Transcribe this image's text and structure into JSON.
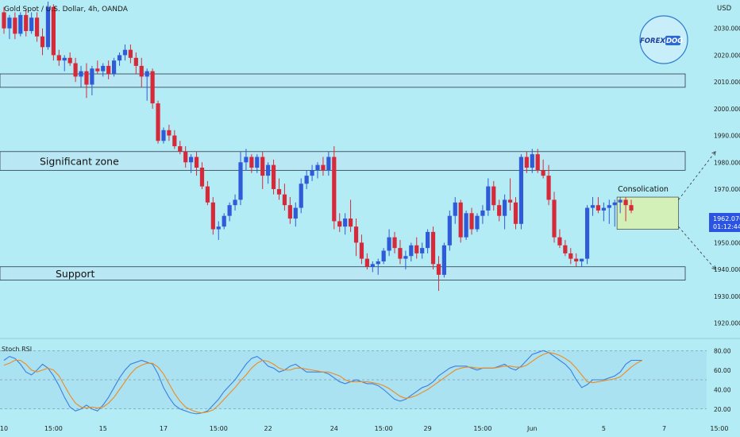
{
  "header": {
    "symbol_title": "Gold Spot / U.S. Dollar, 4h, OANDA"
  },
  "logo": {
    "text_a": "FOREX",
    "text_b": "DOG"
  },
  "colors": {
    "background": "#b3ecf5",
    "bull": "#2f5bd9",
    "bear": "#d62a3a",
    "k_line": "#3d7fe0",
    "d_line": "#f08b1e",
    "zone_fill": "#b9e7f3",
    "consolidation_fill": "#d4f0b9",
    "price_tag": "#2b55e0"
  },
  "chart_data": [
    {
      "type": "candlestick",
      "title": "Gold Spot / U.S. Dollar, 4h, OANDA",
      "price_axis_label": "USD",
      "ylim": [
        1916,
        2040
      ],
      "y_ticks": [
        1920,
        1930,
        1940,
        1950,
        1960,
        1970,
        1980,
        1990,
        2000,
        2010,
        2020,
        2030
      ],
      "y_tick_labels": [
        "1920.000",
        "1930.000",
        "1940.000",
        "1950.000",
        "1960.000",
        "1970.000",
        "1980.000",
        "1990.000",
        "2000.000",
        "2010.000",
        "2020.000",
        "2030.000"
      ],
      "x_ticks": [
        {
          "label": "10",
          "i": 0
        },
        {
          "label": "15:00",
          "i": 9
        },
        {
          "label": "15",
          "i": 18
        },
        {
          "label": "17",
          "i": 29
        },
        {
          "label": "15:00",
          "i": 39
        },
        {
          "label": "22",
          "i": 48
        },
        {
          "label": "24",
          "i": 60
        },
        {
          "label": "15:00",
          "i": 69
        },
        {
          "label": "29",
          "i": 77
        },
        {
          "label": "15:00",
          "i": 87
        },
        {
          "label": "Jun",
          "i": 96
        },
        {
          "label": "5",
          "i": 109
        },
        {
          "label": "7",
          "i": 120
        },
        {
          "label": "15:00",
          "i": 130
        }
      ],
      "last_price": "1962.070",
      "countdown": "01:12:44",
      "candles": [
        [
          2036,
          2038,
          2028,
          2030
        ],
        [
          2030,
          2035,
          2026,
          2034
        ],
        [
          2034,
          2036,
          2026,
          2028
        ],
        [
          2028,
          2036,
          2027,
          2035
        ],
        [
          2035,
          2037,
          2027,
          2029
        ],
        [
          2029,
          2036,
          2028,
          2034
        ],
        [
          2034,
          2036,
          2025,
          2027
        ],
        [
          2027,
          2030,
          2020,
          2023
        ],
        [
          2023,
          2040,
          2022,
          2038
        ],
        [
          2038,
          2039,
          2018,
          2020
        ],
        [
          2020,
          2022,
          2016,
          2018
        ],
        [
          2018,
          2020,
          2014,
          2019
        ],
        [
          2019,
          2021,
          2016,
          2017
        ],
        [
          2017,
          2019,
          2010,
          2012
        ],
        [
          2012,
          2016,
          2008,
          2014
        ],
        [
          2014,
          2017,
          2004,
          2009
        ],
        [
          2009,
          2016,
          2005,
          2015
        ],
        [
          2015,
          2018,
          2013,
          2014
        ],
        [
          2014,
          2017,
          2012,
          2016
        ],
        [
          2016,
          2018,
          2011,
          2013
        ],
        [
          2013,
          2019,
          2012,
          2018
        ],
        [
          2018,
          2021,
          2016,
          2020
        ],
        [
          2020,
          2024,
          2018,
          2022
        ],
        [
          2022,
          2024,
          2017,
          2019
        ],
        [
          2019,
          2021,
          2013,
          2016
        ],
        [
          2016,
          2019,
          2008,
          2012
        ],
        [
          2012,
          2015,
          2003,
          2014
        ],
        [
          2014,
          2015,
          2000,
          2002
        ],
        [
          2002,
          2003,
          1987,
          1988
        ],
        [
          1988,
          1993,
          1987,
          1992
        ],
        [
          1992,
          1994,
          1988,
          1990
        ],
        [
          1990,
          1992,
          1985,
          1986
        ],
        [
          1986,
          1988,
          1983,
          1984
        ],
        [
          1984,
          1986,
          1978,
          1980
        ],
        [
          1980,
          1983,
          1976,
          1982
        ],
        [
          1982,
          1984,
          1975,
          1978
        ],
        [
          1978,
          1980,
          1970,
          1971
        ],
        [
          1971,
          1973,
          1964,
          1965
        ],
        [
          1965,
          1967,
          1953,
          1955
        ],
        [
          1955,
          1958,
          1951,
          1956
        ],
        [
          1956,
          1961,
          1955,
          1960
        ],
        [
          1960,
          1965,
          1958,
          1964
        ],
        [
          1964,
          1968,
          1962,
          1966
        ],
        [
          1966,
          1984,
          1964,
          1980
        ],
        [
          1980,
          1985,
          1977,
          1982
        ],
        [
          1982,
          1983,
          1976,
          1978
        ],
        [
          1978,
          1983,
          1976,
          1982
        ],
        [
          1982,
          1984,
          1970,
          1975
        ],
        [
          1975,
          1980,
          1972,
          1979
        ],
        [
          1979,
          1981,
          1968,
          1970
        ],
        [
          1970,
          1974,
          1966,
          1968
        ],
        [
          1968,
          1972,
          1962,
          1964
        ],
        [
          1964,
          1967,
          1957,
          1959
        ],
        [
          1959,
          1965,
          1956,
          1963
        ],
        [
          1963,
          1974,
          1961,
          1972
        ],
        [
          1972,
          1977,
          1970,
          1975
        ],
        [
          1975,
          1979,
          1973,
          1977
        ],
        [
          1977,
          1980,
          1974,
          1979
        ],
        [
          1979,
          1982,
          1975,
          1977
        ],
        [
          1977,
          1984,
          1975,
          1982
        ],
        [
          1982,
          1986,
          1955,
          1958
        ],
        [
          1958,
          1961,
          1954,
          1956
        ],
        [
          1956,
          1961,
          1953,
          1959
        ],
        [
          1959,
          1966,
          1954,
          1956
        ],
        [
          1956,
          1959,
          1945,
          1950
        ],
        [
          1950,
          1953,
          1942,
          1944
        ],
        [
          1944,
          1946,
          1940,
          1941
        ],
        [
          1941,
          1943,
          1939,
          1942
        ],
        [
          1942,
          1944,
          1938,
          1943
        ],
        [
          1943,
          1948,
          1942,
          1947
        ],
        [
          1947,
          1955,
          1945,
          1952
        ],
        [
          1952,
          1954,
          1946,
          1948
        ],
        [
          1948,
          1951,
          1942,
          1944
        ],
        [
          1944,
          1947,
          1940,
          1945
        ],
        [
          1945,
          1950,
          1943,
          1949
        ],
        [
          1949,
          1952,
          1944,
          1946
        ],
        [
          1946,
          1950,
          1944,
          1948
        ],
        [
          1948,
          1955,
          1946,
          1954
        ],
        [
          1954,
          1956,
          1940,
          1942
        ],
        [
          1942,
          1945,
          1932,
          1938
        ],
        [
          1938,
          1950,
          1937,
          1949
        ],
        [
          1949,
          1962,
          1947,
          1960
        ],
        [
          1960,
          1967,
          1957,
          1965
        ],
        [
          1965,
          1966,
          1950,
          1952
        ],
        [
          1952,
          1962,
          1951,
          1961
        ],
        [
          1961,
          1963,
          1953,
          1955
        ],
        [
          1955,
          1961,
          1954,
          1960
        ],
        [
          1960,
          1964,
          1957,
          1962
        ],
        [
          1962,
          1974,
          1960,
          1971
        ],
        [
          1971,
          1973,
          1962,
          1964
        ],
        [
          1964,
          1966,
          1958,
          1960
        ],
        [
          1960,
          1968,
          1955,
          1966
        ],
        [
          1966,
          1974,
          1962,
          1965
        ],
        [
          1965,
          1967,
          1955,
          1957
        ],
        [
          1957,
          1983,
          1955,
          1982
        ],
        [
          1982,
          1984,
          1976,
          1978
        ],
        [
          1978,
          1985,
          1976,
          1983
        ],
        [
          1983,
          1985,
          1976,
          1977
        ],
        [
          1977,
          1981,
          1974,
          1975
        ],
        [
          1975,
          1979,
          1964,
          1966
        ],
        [
          1966,
          1969,
          1950,
          1952
        ],
        [
          1952,
          1955,
          1948,
          1949
        ],
        [
          1949,
          1951,
          1945,
          1946
        ],
        [
          1946,
          1948,
          1942,
          1944
        ],
        [
          1944,
          1946,
          1941,
          1943
        ],
        [
          1943,
          1944,
          1941,
          1944
        ],
        [
          1944,
          1964,
          1942,
          1963
        ],
        [
          1963,
          1967,
          1960,
          1964
        ],
        [
          1964,
          1967,
          1961,
          1962
        ],
        [
          1962,
          1965,
          1958,
          1963
        ],
        [
          1963,
          1966,
          1957,
          1964
        ],
        [
          1964,
          1966,
          1956,
          1965
        ],
        [
          1965,
          1967,
          1961,
          1966
        ],
        [
          1966,
          1967,
          1958,
          1964
        ],
        [
          1964,
          1966,
          1961,
          1962
        ]
      ],
      "zones": [
        {
          "label": "",
          "low": 2008,
          "high": 2013
        },
        {
          "label": "Significant zone",
          "low": 1977,
          "high": 1984
        },
        {
          "label": "Support",
          "low": 1936,
          "high": 1941
        }
      ],
      "consolidation": {
        "label": "Consolication",
        "i_start": 112,
        "i_end": 122,
        "low": 1955,
        "high": 1967
      },
      "projection_up": [
        [
          122,
          1966
        ],
        [
          127,
          1984
        ]
      ],
      "projection_down": [
        [
          122,
          1956
        ],
        [
          127,
          1940
        ]
      ]
    },
    {
      "type": "line",
      "title": "Stoch RSI",
      "ylim": [
        10,
        90
      ],
      "y_ticks": [
        20,
        40,
        60,
        80
      ],
      "y_tick_labels": [
        "20.00",
        "40.00",
        "60.00",
        "80.00"
      ],
      "levels": [
        20,
        50,
        80
      ],
      "series": [
        {
          "name": "K",
          "values": [
            70,
            74,
            72,
            66,
            58,
            55,
            60,
            66,
            62,
            54,
            44,
            32,
            22,
            18,
            20,
            24,
            20,
            18,
            24,
            32,
            42,
            52,
            60,
            66,
            68,
            70,
            68,
            66,
            56,
            42,
            32,
            24,
            20,
            18,
            16,
            15,
            16,
            18,
            24,
            30,
            38,
            44,
            50,
            58,
            66,
            72,
            74,
            70,
            64,
            62,
            58,
            60,
            64,
            66,
            62,
            58,
            58,
            58,
            58,
            56,
            52,
            48,
            46,
            48,
            50,
            48,
            46,
            46,
            44,
            40,
            35,
            30,
            28,
            30,
            34,
            38,
            42,
            44,
            48,
            54,
            58,
            62,
            64,
            64,
            64,
            62,
            60,
            62,
            62,
            62,
            64,
            66,
            62,
            60,
            64,
            70,
            76,
            78,
            80,
            78,
            74,
            70,
            66,
            60,
            50,
            42,
            45,
            50,
            50,
            50,
            52,
            54,
            58,
            66,
            70,
            70,
            70
          ]
        },
        {
          "name": "D",
          "values": [
            65,
            67,
            70,
            70,
            66,
            60,
            58,
            60,
            62,
            60,
            54,
            44,
            34,
            26,
            22,
            21,
            22,
            21,
            22,
            26,
            32,
            40,
            48,
            56,
            62,
            65,
            67,
            67,
            63,
            56,
            46,
            36,
            28,
            22,
            19,
            17,
            16,
            17,
            19,
            24,
            30,
            36,
            42,
            49,
            55,
            62,
            67,
            70,
            69,
            66,
            62,
            60,
            60,
            62,
            62,
            61,
            60,
            59,
            58,
            58,
            56,
            54,
            50,
            48,
            48,
            48,
            48,
            47,
            46,
            44,
            41,
            37,
            33,
            31,
            32,
            34,
            37,
            40,
            44,
            48,
            52,
            56,
            60,
            62,
            63,
            63,
            62,
            62,
            62,
            62,
            63,
            64,
            64,
            63,
            63,
            65,
            69,
            73,
            76,
            78,
            77,
            75,
            72,
            68,
            62,
            55,
            48,
            47,
            48,
            49,
            50,
            51,
            53,
            58,
            63,
            67,
            70
          ]
        }
      ]
    }
  ]
}
